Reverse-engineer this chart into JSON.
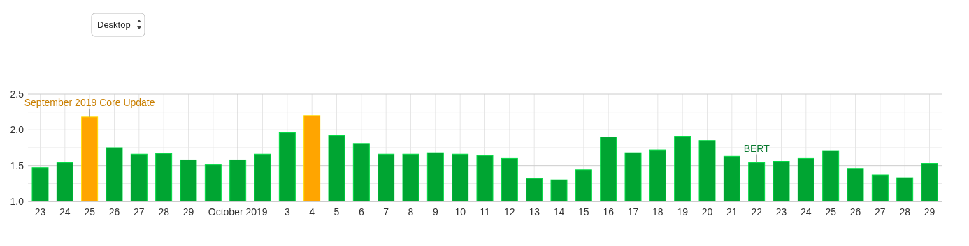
{
  "chart_data": {
    "type": "bar",
    "categories": [
      "23",
      "24",
      "25",
      "26",
      "27",
      "28",
      "29",
      null,
      "October 2019",
      null,
      "3",
      "4",
      "5",
      "6",
      "7",
      "8",
      "9",
      "10",
      "11",
      "12",
      "13",
      "14",
      "15",
      "16",
      "17",
      "18",
      "19",
      "20",
      "21",
      "22",
      "23",
      "24",
      "25",
      "26",
      "27",
      "28",
      "29"
    ],
    "values": [
      1.47,
      1.54,
      2.18,
      1.75,
      1.66,
      1.67,
      1.58,
      1.51,
      1.58,
      1.66,
      1.96,
      2.2,
      1.92,
      1.81,
      1.66,
      1.66,
      1.68,
      1.66,
      1.64,
      1.6,
      1.32,
      1.3,
      1.44,
      1.9,
      1.68,
      1.72,
      1.91,
      1.85,
      1.63,
      1.54,
      1.56,
      1.6,
      1.71,
      1.46,
      1.37,
      1.33,
      1.53
    ],
    "colors": [
      "#00a532",
      "#00a532",
      "#ffa500",
      "#00a532",
      "#00a532",
      "#00a532",
      "#00a532",
      "#00a532",
      "#00a532",
      "#00a532",
      "#00a532",
      "#ffa500",
      "#00a532",
      "#00a532",
      "#00a532",
      "#00a532",
      "#00a532",
      "#00a532",
      "#00a532",
      "#00a532",
      "#00a532",
      "#00a532",
      "#00a532",
      "#00a532",
      "#00a532",
      "#00a532",
      "#00a532",
      "#00a532",
      "#00a532",
      "#00a532",
      "#00a532",
      "#00a532",
      "#00a532",
      "#00a532",
      "#00a532",
      "#00a532",
      "#00a532"
    ],
    "ylim": [
      1,
      2.5
    ],
    "yticks": [
      {
        "value": 1,
        "label": "1.0"
      },
      {
        "value": 1.25,
        "label": null
      },
      1.5,
      {
        "value": 1.75,
        "label": null
      },
      {
        "value": 2,
        "label": "2.0"
      },
      {
        "value": 2.25,
        "label": null
      },
      2.5
    ],
    "grid": true,
    "ref_lines": [
      {
        "axis": "x",
        "value": "October 2019",
        "color": "#bbbbbb"
      }
    ],
    "annotations": [
      "Desktop",
      {
        "text": "September 2019 Core Update",
        "x": "25",
        "y": 2.18
      },
      {
        "text": "BERT",
        "x": "22",
        "y": 1.54
      }
    ]
  }
}
